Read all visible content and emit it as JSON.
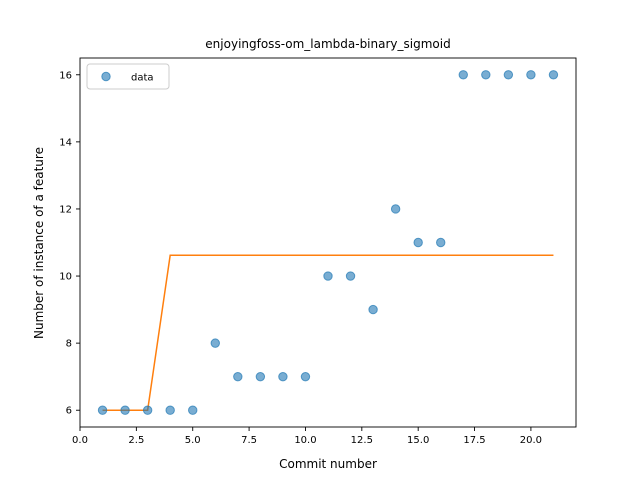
{
  "chart_data": {
    "type": "scatter",
    "title": "enjoyingfoss-om_lambda-binary_sigmoid",
    "xlabel": "Commit number",
    "ylabel": "Number of instance of a feature",
    "xlim": [
      0,
      22
    ],
    "ylim": [
      5.5,
      16.5
    ],
    "xticks": [
      0,
      2.5,
      5,
      7.5,
      10,
      12.5,
      15,
      17.5,
      20
    ],
    "xtick_labels": [
      "0.0",
      "2.5",
      "5.0",
      "7.5",
      "10.0",
      "12.5",
      "15.0",
      "17.5",
      "20.0"
    ],
    "yticks": [
      6,
      8,
      10,
      12,
      14,
      16
    ],
    "ytick_labels": [
      "6",
      "8",
      "10",
      "12",
      "14",
      "16"
    ],
    "grid": false,
    "legend": {
      "position": "top-left",
      "entries": [
        "data"
      ]
    },
    "series": [
      {
        "name": "data",
        "kind": "scatter",
        "color": "#1f77b4",
        "x": [
          1,
          2,
          3,
          4,
          5,
          6,
          7,
          8,
          9,
          10,
          11,
          12,
          13,
          14,
          15,
          16,
          17,
          18,
          19,
          20,
          21
        ],
        "y": [
          6,
          6,
          6,
          6,
          6,
          8,
          7,
          7,
          7,
          7,
          10,
          10,
          9,
          12,
          11,
          11,
          16,
          16,
          16,
          16,
          16
        ]
      },
      {
        "kind": "line",
        "color": "#ff7f0e",
        "x": [
          1,
          3,
          4,
          21
        ],
        "y": [
          6,
          6,
          10.62,
          10.62
        ]
      }
    ]
  }
}
